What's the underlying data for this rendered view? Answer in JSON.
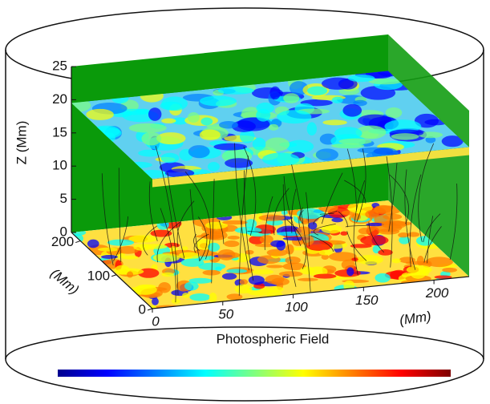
{
  "chart_data": {
    "type": "volume3d",
    "zlabel": "Z (Mm)",
    "ylabel": "(Mm)",
    "xlabel": "(Mm)",
    "colorbar_label": "Photospheric Field",
    "xlim": [
      0,
      225
    ],
    "ylim": [
      0,
      225
    ],
    "zlim": [
      0,
      25
    ],
    "xticks": [
      0,
      50,
      100,
      150,
      200
    ],
    "yticks": [
      0,
      100,
      200
    ],
    "zticks": [
      0,
      5,
      10,
      15,
      20,
      25
    ],
    "colormap": "jet"
  }
}
